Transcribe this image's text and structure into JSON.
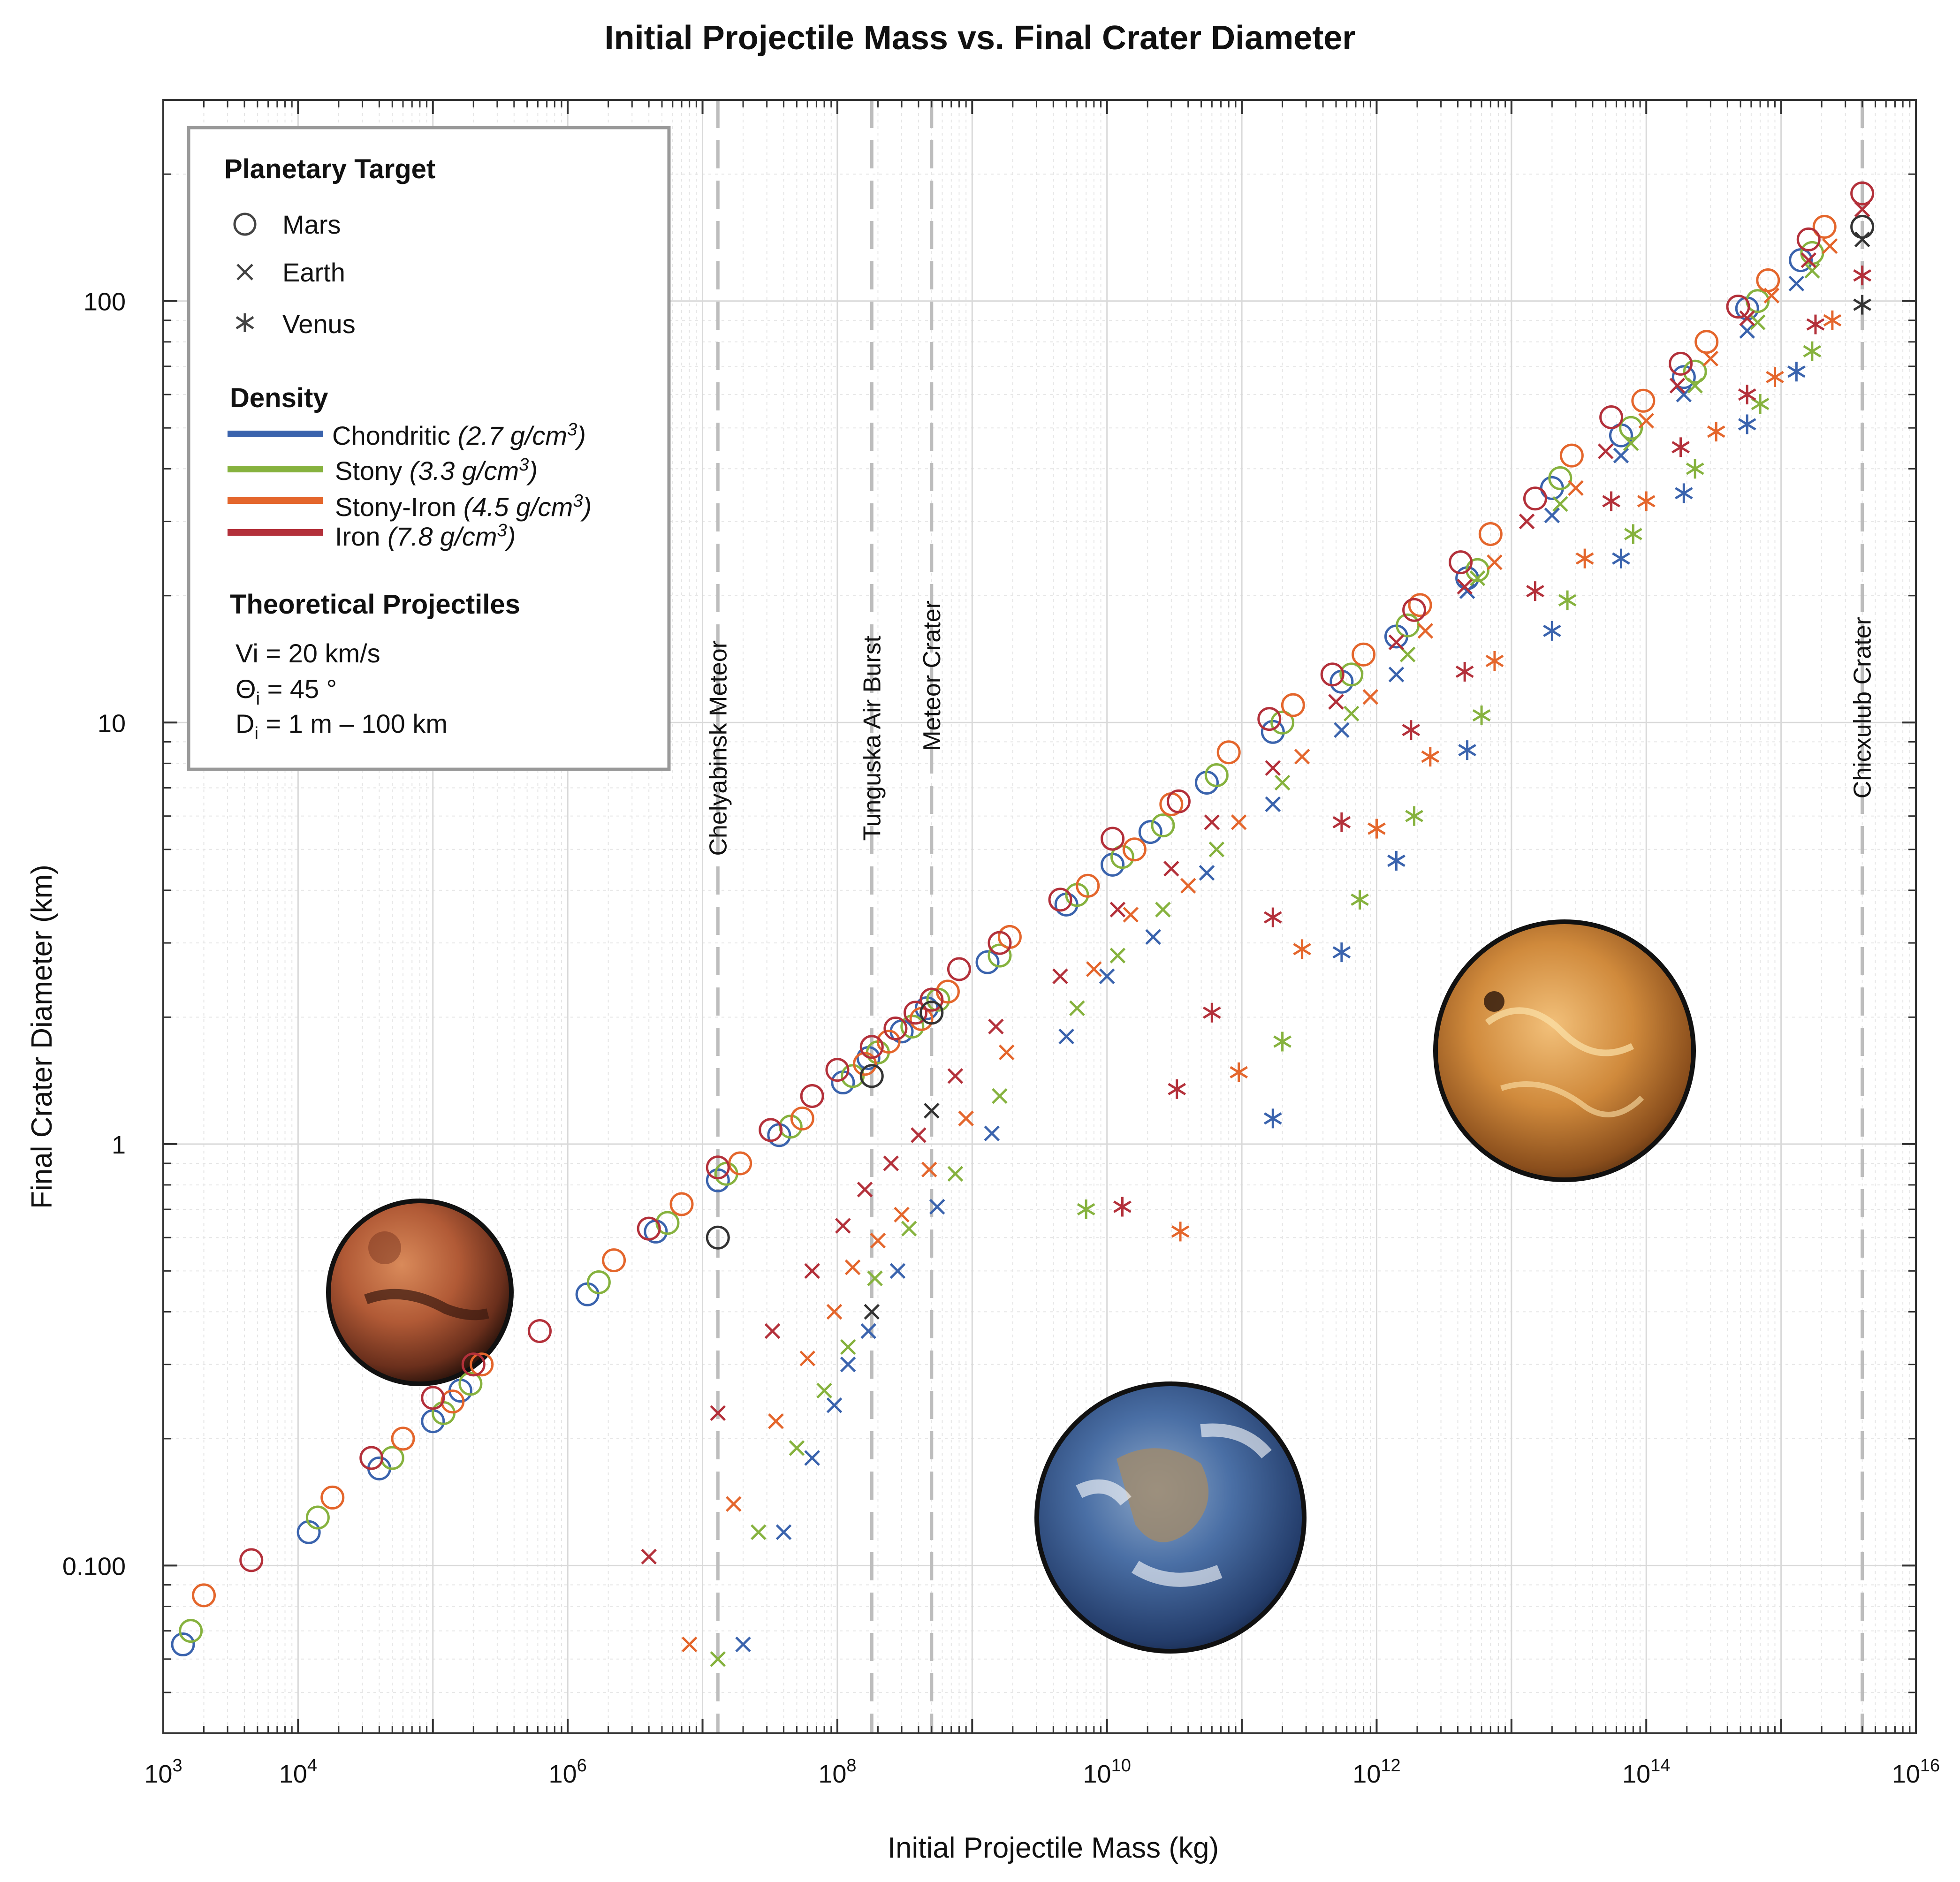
{
  "chart_data": {
    "type": "scatter",
    "title": "Initial Projectile Mass vs. Final Crater Diameter",
    "xlabel": "Initial Projectile Mass (kg)",
    "ylabel": "Final Crater Diameter (km)",
    "x_scale": "log",
    "y_scale": "log",
    "xlim": [
      1000,
      10000000000000000
    ],
    "ylim": [
      0.04,
      300
    ],
    "x_tick_labels": [
      {
        "base": "10",
        "exp": "3",
        "value": 1000
      },
      {
        "base": "10",
        "exp": "4",
        "value": 10000
      },
      {
        "base": "10",
        "exp": "6",
        "value": 1000000
      },
      {
        "base": "10",
        "exp": "8",
        "value": 100000000
      },
      {
        "base": "10",
        "exp": "10",
        "value": 10000000000
      },
      {
        "base": "10",
        "exp": "12",
        "value": 1000000000000
      },
      {
        "base": "10",
        "exp": "14",
        "value": 100000000000000
      },
      {
        "base": "10",
        "exp": "16",
        "value": 10000000000000000
      }
    ],
    "y_tick_labels": [
      {
        "label": "0.100",
        "value": 0.1
      },
      {
        "label": "1",
        "value": 1
      },
      {
        "label": "10",
        "value": 10
      },
      {
        "label": "100",
        "value": 100
      }
    ],
    "grid": true,
    "legend_position": "top-left",
    "events": [
      {
        "label": "Chelyabinsk Meteor",
        "x": 13000000
      },
      {
        "label": "Tunguska Air Burst",
        "x": 180000000
      },
      {
        "label": "Meteor Crater",
        "x": 500000000
      },
      {
        "label": "Chicxulub Crater",
        "x": 4000000000000000
      }
    ],
    "legend": {
      "target_title": "Planetary Target",
      "targets": [
        {
          "name": "Mars",
          "marker": "circle"
        },
        {
          "name": "Earth",
          "marker": "x"
        },
        {
          "name": "Venus",
          "marker": "asterisk"
        }
      ],
      "density_title": "Density",
      "densities": [
        {
          "name": "Chondritic",
          "value": "(2.7 g/cm",
          "exp": "3",
          "close": ")",
          "color": "#3a63ad"
        },
        {
          "name": "Stony",
          "value": "(3.3 g/cm",
          "exp": "3",
          "close": ")",
          "color": "#86b23e"
        },
        {
          "name": "Stony-Iron",
          "value": "(4.5 g/cm",
          "exp": "3",
          "close": ")",
          "color": "#e4662c"
        },
        {
          "name": "Iron",
          "value": "(7.8 g/cm",
          "exp": "3",
          "close": ")",
          "color": "#b3303a"
        }
      ],
      "projectiles_title": "Theoretical Projectiles",
      "vi_label": "Vi = 20 km/s",
      "theta_sym": "Θ",
      "theta_sub": "i",
      "theta_value": " = 45 °",
      "d_sym": "D",
      "d_sub": "i",
      "d_value": " = 1 m – 100 km"
    },
    "series": [
      {
        "target": "Mars",
        "marker": "circle",
        "color": "#3a63ad",
        "x": [
          1400,
          12000,
          40000,
          100000,
          160000,
          1400000,
          4500000,
          13000000,
          37000000,
          110000000,
          170000000,
          300000000,
          460000000,
          1300000000,
          5000000000,
          11000000000,
          21000000000,
          55000000000,
          170000000000,
          550000000000,
          1400000000000,
          4700000000000,
          20000000000000,
          65000000000000,
          190000000000000,
          560000000000000,
          1400000000000000
        ],
        "y": [
          0.065,
          0.12,
          0.17,
          0.22,
          0.26,
          0.44,
          0.62,
          0.82,
          1.05,
          1.4,
          1.6,
          1.85,
          2.1,
          2.7,
          3.7,
          4.6,
          5.5,
          7.2,
          9.5,
          12.5,
          16,
          22,
          36,
          48,
          66,
          96,
          125
        ]
      },
      {
        "target": "Mars",
        "marker": "circle",
        "color": "#86b23e",
        "x": [
          1600,
          14000,
          50000,
          120000,
          190000,
          1700000,
          5500000,
          15000000,
          45000000,
          130000000,
          200000000,
          360000000,
          560000000,
          1600000000,
          6000000000,
          13000000000,
          26000000000,
          65000000000,
          200000000000,
          650000000000,
          1700000000000,
          5600000000000,
          23000000000000,
          77000000000000,
          230000000000000,
          670000000000000,
          1700000000000000
        ],
        "y": [
          0.07,
          0.13,
          0.18,
          0.23,
          0.27,
          0.47,
          0.65,
          0.85,
          1.1,
          1.45,
          1.65,
          1.9,
          2.2,
          2.8,
          3.9,
          4.8,
          5.7,
          7.5,
          10,
          13,
          17,
          23,
          38,
          50,
          68,
          100,
          130
        ]
      },
      {
        "target": "Mars",
        "marker": "circle",
        "color": "#e4662c",
        "x": [
          2000,
          18000,
          60000,
          140000,
          230000,
          2200000,
          7000000,
          19000000,
          55000000,
          160000000,
          240000000,
          420000000,
          660000000,
          1900000000,
          7200000000,
          16000000000,
          30000000000,
          80000000000,
          240000000000,
          800000000000,
          2100000000000,
          7000000000000,
          28000000000000,
          95000000000000,
          280000000000000,
          800000000000000,
          2100000000000000
        ],
        "y": [
          0.085,
          0.145,
          0.2,
          0.245,
          0.3,
          0.53,
          0.72,
          0.9,
          1.15,
          1.55,
          1.75,
          1.98,
          2.3,
          3.1,
          4.1,
          5.0,
          6.4,
          8.5,
          11,
          14.5,
          19,
          28,
          43,
          58,
          80,
          112,
          150
        ]
      },
      {
        "target": "Mars",
        "marker": "circle",
        "color": "#b3303a",
        "x": [
          4500,
          35000,
          100000,
          200000,
          620000,
          4000000,
          13000000,
          32000000,
          65000000,
          100000000,
          180000000,
          270000000,
          380000000,
          500000000,
          800000000,
          1600000000,
          4500000000,
          11000000000,
          34000000000,
          160000000000,
          470000000000,
          1900000000000,
          4200000000000,
          15000000000000,
          55000000000000,
          180000000000000,
          480000000000000,
          1600000000000000,
          4000000000000000
        ],
        "y": [
          0.103,
          0.18,
          0.25,
          0.3,
          0.36,
          0.63,
          0.88,
          1.08,
          1.3,
          1.5,
          1.7,
          1.88,
          2.05,
          2.2,
          2.6,
          3.0,
          3.8,
          5.3,
          6.5,
          10.2,
          13,
          18.5,
          24,
          34,
          53,
          71,
          97,
          140,
          180
        ]
      },
      {
        "target": "Mars",
        "marker": "circle",
        "color": "#333333",
        "x": [
          13000000,
          180000000,
          500000000,
          4000000000000000
        ],
        "y": [
          0.6,
          1.45,
          2.05,
          150
        ]
      },
      {
        "target": "Earth",
        "marker": "x",
        "color": "#3a63ad",
        "x": [
          20000000,
          40000000,
          65000000,
          95000000,
          120000000,
          170000000,
          280000000,
          550000000,
          1400000000,
          5000000000,
          10000000000,
          22000000000,
          55000000000,
          170000000000,
          550000000000,
          1400000000000,
          4700000000000,
          20000000000000,
          65000000000000,
          190000000000000,
          560000000000000,
          1300000000000000
        ],
        "y": [
          0.065,
          0.12,
          0.18,
          0.24,
          0.3,
          0.36,
          0.5,
          0.71,
          1.06,
          1.8,
          2.5,
          3.1,
          4.4,
          6.4,
          9.6,
          13,
          20.5,
          31,
          43,
          60,
          85,
          110
        ]
      },
      {
        "target": "Earth",
        "marker": "x",
        "color": "#86b23e",
        "x": [
          13000000,
          26000000,
          50000000,
          80000000,
          120000000,
          190000000,
          340000000,
          750000000,
          1600000000,
          6000000000,
          12000000000,
          26000000000,
          65000000000,
          200000000000,
          650000000000,
          1700000000000,
          5600000000000,
          23000000000000,
          77000000000000,
          230000000000000,
          670000000000000,
          1700000000000000
        ],
        "y": [
          0.06,
          0.12,
          0.19,
          0.26,
          0.33,
          0.48,
          0.63,
          0.85,
          1.3,
          2.1,
          2.8,
          3.6,
          5.0,
          7.2,
          10.5,
          14.5,
          22,
          33,
          46,
          63,
          89,
          118
        ]
      },
      {
        "target": "Earth",
        "marker": "x",
        "color": "#e4662c",
        "x": [
          8000000,
          17000000,
          35000000,
          60000000,
          95000000,
          130000000,
          200000000,
          300000000,
          480000000,
          900000000,
          1800000000,
          8000000000,
          15000000000,
          40000000000,
          95000000000,
          280000000000,
          900000000000,
          2300000000000,
          7500000000000,
          30000000000000,
          100000000000000,
          300000000000000,
          850000000000000,
          2300000000000000
        ],
        "y": [
          0.065,
          0.14,
          0.22,
          0.31,
          0.4,
          0.51,
          0.59,
          0.68,
          0.87,
          1.15,
          1.65,
          2.6,
          3.5,
          4.1,
          5.8,
          8.3,
          11.5,
          16.5,
          24,
          36,
          52,
          73,
          103,
          135
        ]
      },
      {
        "target": "Earth",
        "marker": "x",
        "color": "#b3303a",
        "x": [
          4000000,
          13000000,
          33000000,
          65000000,
          110000000,
          160000000,
          250000000,
          400000000,
          750000000,
          1500000000,
          4500000000,
          12000000000,
          30000000000,
          60000000000,
          170000000000,
          500000000000,
          1400000000000,
          4500000000000,
          13000000000000,
          50000000000000,
          170000000000000,
          560000000000000,
          1600000000000000,
          4000000000000000
        ],
        "y": [
          0.105,
          0.23,
          0.36,
          0.5,
          0.64,
          0.78,
          0.9,
          1.05,
          1.45,
          1.9,
          2.5,
          3.6,
          4.5,
          5.8,
          7.8,
          11.2,
          15.5,
          21,
          30,
          44,
          63,
          91,
          125,
          165
        ]
      },
      {
        "target": "Earth",
        "marker": "x",
        "color": "#333333",
        "x": [
          180000000,
          500000000,
          4000000000000000
        ],
        "y": [
          0.4,
          1.2,
          140
        ]
      },
      {
        "target": "Venus",
        "marker": "asterisk",
        "color": "#3a63ad",
        "x": [
          170000000000,
          550000000000,
          1400000000000,
          4700000000000,
          20000000000000,
          65000000000000,
          190000000000000,
          560000000000000,
          1300000000000000
        ],
        "y": [
          1.15,
          2.85,
          4.7,
          8.6,
          16.5,
          24.5,
          35,
          51,
          68
        ]
      },
      {
        "target": "Venus",
        "marker": "asterisk",
        "color": "#86b23e",
        "x": [
          7000000000,
          200000000000,
          750000000000,
          1900000000000,
          6000000000000,
          26000000000000,
          80000000000000,
          230000000000000,
          700000000000000,
          1700000000000000
        ],
        "y": [
          0.7,
          1.75,
          3.8,
          6.0,
          10.4,
          19.5,
          28,
          40,
          57,
          76
        ]
      },
      {
        "target": "Venus",
        "marker": "asterisk",
        "color": "#e4662c",
        "x": [
          35000000000,
          95000000000,
          280000000000,
          1000000000000,
          2500000000000,
          7500000000000,
          35000000000000,
          100000000000000,
          330000000000000,
          900000000000000,
          2400000000000000
        ],
        "y": [
          0.62,
          1.48,
          2.9,
          5.6,
          8.3,
          14,
          24.5,
          33.5,
          49,
          66,
          90
        ]
      },
      {
        "target": "Venus",
        "marker": "asterisk",
        "color": "#b3303a",
        "x": [
          13000000000,
          33000000000,
          60000000000,
          170000000000,
          550000000000,
          1800000000000,
          4500000000000,
          15000000000000,
          55000000000000,
          180000000000000,
          560000000000000,
          1800000000000000,
          4000000000000000
        ],
        "y": [
          0.71,
          1.35,
          2.05,
          3.45,
          5.8,
          9.6,
          13.2,
          20.5,
          33.5,
          45,
          60,
          88,
          115
        ]
      },
      {
        "target": "Venus",
        "marker": "asterisk",
        "color": "#333333",
        "x": [
          4000000000000000
        ],
        "y": [
          98
        ]
      }
    ]
  }
}
